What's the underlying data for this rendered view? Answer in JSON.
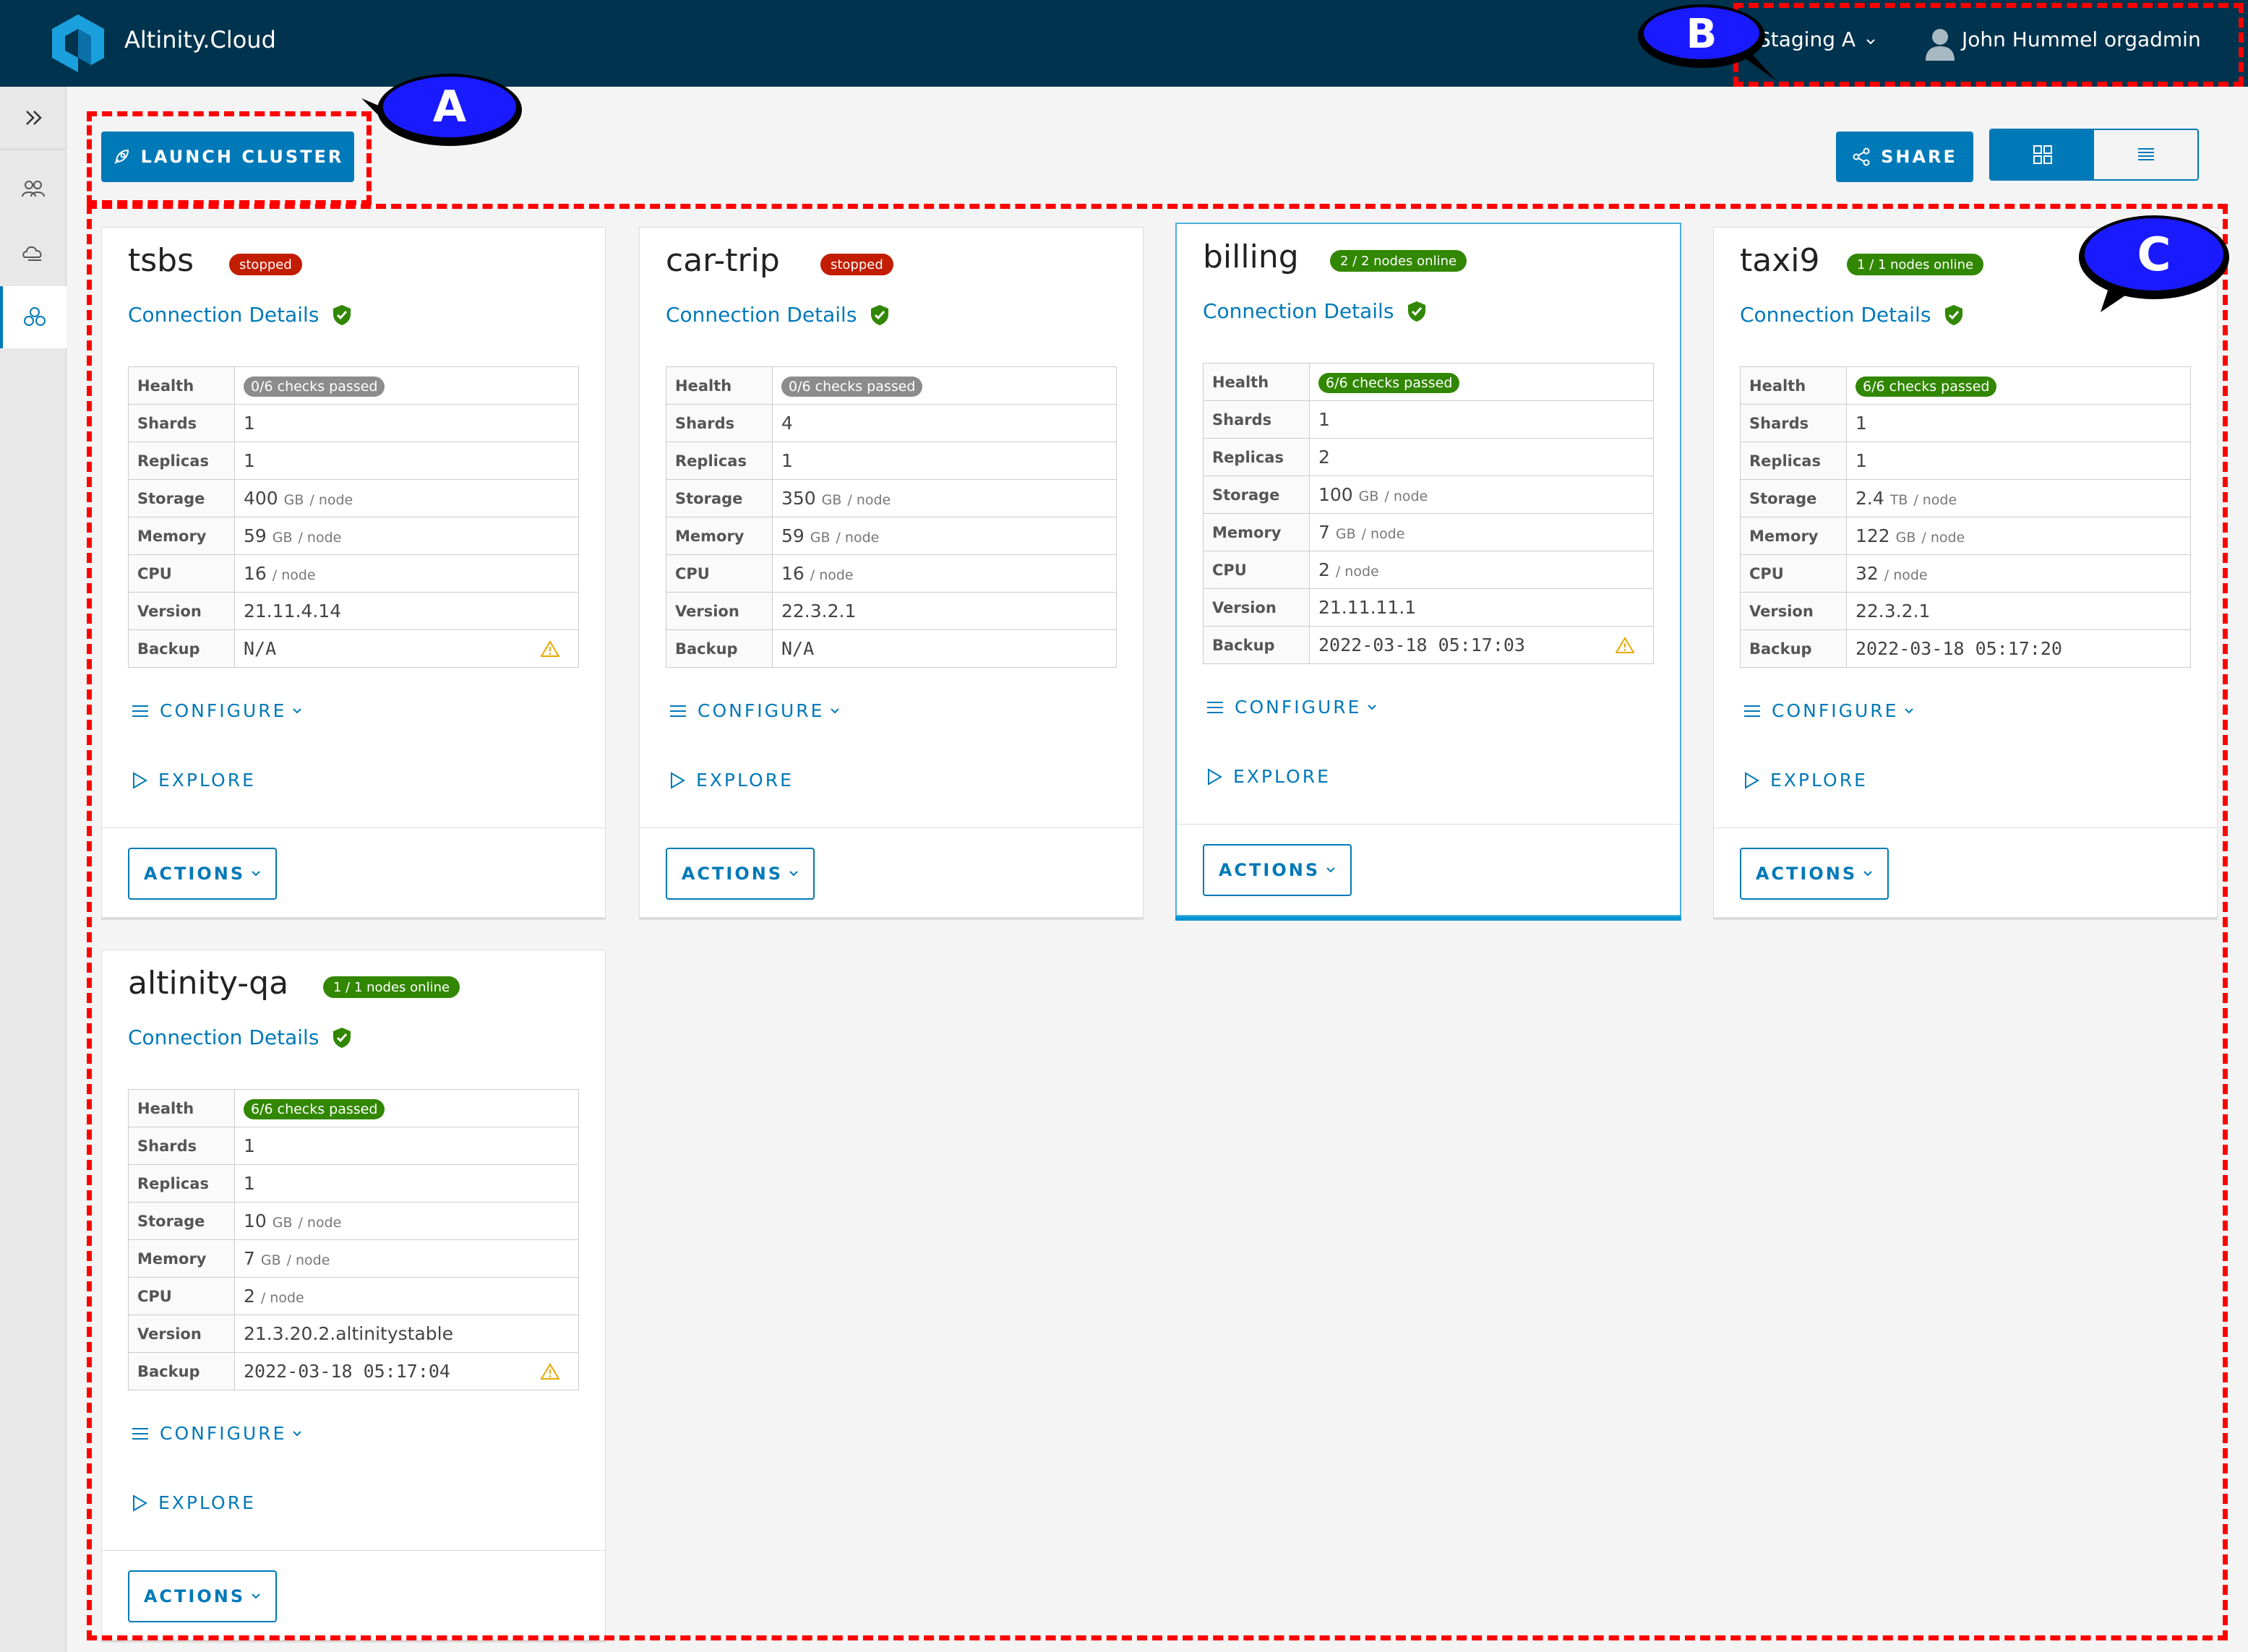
{
  "header": {
    "app_title": "Altinity.Cloud",
    "environment": "Staging A",
    "user": "John Hummel orgadmin"
  },
  "toolbar": {
    "launch_label": "LAUNCH CLUSTER",
    "share_label": "SHARE"
  },
  "annotations": {
    "a": "A",
    "b": "B",
    "c": "C"
  },
  "labels": {
    "connection": "Connection Details",
    "health": "Health",
    "shards": "Shards",
    "replicas": "Replicas",
    "storage": "Storage",
    "memory": "Memory",
    "cpu": "CPU",
    "version": "Version",
    "backup": "Backup",
    "per_node": "/ node",
    "configure": "CONFIGURE",
    "explore": "EXPLORE",
    "actions": "ACTIONS"
  },
  "clusters": [
    {
      "name": "tsbs",
      "status": "stopped",
      "status_color": "#c21d00",
      "health": "0/6 checks passed",
      "health_ok": false,
      "shards": "1",
      "replicas": "1",
      "storage": "400",
      "storage_unit": "GB",
      "memory": "59",
      "memory_unit": "GB",
      "cpu": "16",
      "version": "21.11.4.14",
      "backup": "N/A",
      "backup_warning": true
    },
    {
      "name": "car-trip",
      "status": "stopped",
      "status_color": "#c21d00",
      "health": "0/6 checks passed",
      "health_ok": false,
      "shards": "4",
      "replicas": "1",
      "storage": "350",
      "storage_unit": "GB",
      "memory": "59",
      "memory_unit": "GB",
      "cpu": "16",
      "version": "22.3.2.1",
      "backup": "N/A",
      "backup_warning": false
    },
    {
      "name": "billing",
      "status": "2 / 2 nodes online",
      "status_color": "#318700",
      "health": "6/6 checks passed",
      "health_ok": true,
      "shards": "1",
      "replicas": "2",
      "storage": "100",
      "storage_unit": "GB",
      "memory": "7",
      "memory_unit": "GB",
      "cpu": "2",
      "version": "21.11.11.1",
      "backup": "2022-03-18 05:17:03",
      "backup_warning": true,
      "selected": true
    },
    {
      "name": "taxi9",
      "status": "1 / 1 nodes online",
      "status_color": "#318700",
      "health": "6/6 checks passed",
      "health_ok": true,
      "shards": "1",
      "replicas": "1",
      "storage": "2.4",
      "storage_unit": "TB",
      "memory": "122",
      "memory_unit": "GB",
      "cpu": "32",
      "version": "22.3.2.1",
      "backup": "2022-03-18 05:17:20",
      "backup_warning": false
    },
    {
      "name": "altinity-qa",
      "status": "1 / 1 nodes online",
      "status_color": "#318700",
      "health": "6/6 checks passed",
      "health_ok": true,
      "shards": "1",
      "replicas": "1",
      "storage": "10",
      "storage_unit": "GB",
      "memory": "7",
      "memory_unit": "GB",
      "cpu": "2",
      "version": "21.3.20.2.altinitystable",
      "backup": "2022-03-18 05:17:04",
      "backup_warning": true
    }
  ]
}
